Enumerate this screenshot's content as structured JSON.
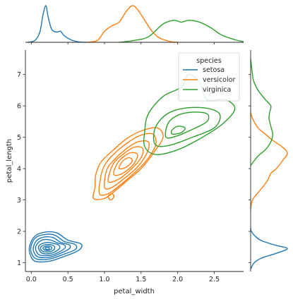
{
  "chart_data": {
    "type": "kde-joint",
    "xlabel": "petal_width",
    "ylabel": "petal_length",
    "xlim": [
      -0.08,
      2.9
    ],
    "ylim": [
      0.72,
      7.78
    ],
    "x_ticks": [
      0.0,
      0.5,
      1.0,
      1.5,
      2.0,
      2.5
    ],
    "x_tick_labels": [
      "0.0",
      "0.5",
      "1.0",
      "1.5",
      "2.0",
      "2.5"
    ],
    "y_ticks": [
      1,
      2,
      3,
      4,
      5,
      6,
      7
    ],
    "y_tick_labels": [
      "1",
      "2",
      "3",
      "4",
      "5",
      "6",
      "7"
    ],
    "grid": false,
    "legend": {
      "title": "species",
      "placement": "top-right",
      "entries": [
        "setosa",
        "versicolor",
        "virginica"
      ]
    },
    "series": [
      {
        "name": "setosa",
        "color": "#1f77b4",
        "center": [
          0.24,
          1.46
        ],
        "x_density": [
          [
            -0.05,
            0.0
          ],
          [
            0.05,
            0.05
          ],
          [
            0.12,
            0.3
          ],
          [
            0.16,
            0.75
          ],
          [
            0.2,
            1.0
          ],
          [
            0.23,
            0.7
          ],
          [
            0.28,
            0.35
          ],
          [
            0.35,
            0.28
          ],
          [
            0.4,
            0.3
          ],
          [
            0.45,
            0.18
          ],
          [
            0.55,
            0.06
          ],
          [
            0.65,
            0.01
          ],
          [
            0.75,
            0.0
          ]
        ],
        "y_density": [
          [
            0.8,
            0.0
          ],
          [
            1.0,
            0.1
          ],
          [
            1.15,
            0.3
          ],
          [
            1.3,
            0.7
          ],
          [
            1.45,
            1.0
          ],
          [
            1.55,
            0.7
          ],
          [
            1.7,
            0.3
          ],
          [
            1.85,
            0.12
          ],
          [
            2.0,
            0.02
          ],
          [
            2.1,
            0.0
          ]
        ],
        "contours": [
          [
            [
              0.05,
              1.05
            ],
            [
              0.25,
              1.05
            ],
            [
              0.45,
              1.2
            ],
            [
              0.65,
              1.4
            ],
            [
              0.68,
              1.6
            ],
            [
              0.5,
              1.72
            ],
            [
              0.35,
              1.95
            ],
            [
              0.2,
              1.98
            ],
            [
              0.05,
              1.85
            ],
            [
              -0.02,
              1.55
            ],
            [
              -0.02,
              1.3
            ]
          ],
          [
            [
              0.07,
              1.12
            ],
            [
              0.25,
              1.12
            ],
            [
              0.42,
              1.25
            ],
            [
              0.6,
              1.42
            ],
            [
              0.6,
              1.58
            ],
            [
              0.45,
              1.68
            ],
            [
              0.32,
              1.88
            ],
            [
              0.18,
              1.9
            ],
            [
              0.06,
              1.8
            ],
            [
              0.0,
              1.55
            ],
            [
              0.0,
              1.32
            ]
          ],
          [
            [
              0.1,
              1.18
            ],
            [
              0.26,
              1.18
            ],
            [
              0.4,
              1.3
            ],
            [
              0.52,
              1.45
            ],
            [
              0.52,
              1.57
            ],
            [
              0.4,
              1.65
            ],
            [
              0.3,
              1.8
            ],
            [
              0.18,
              1.82
            ],
            [
              0.08,
              1.72
            ],
            [
              0.03,
              1.5
            ],
            [
              0.04,
              1.32
            ]
          ],
          [
            [
              0.12,
              1.24
            ],
            [
              0.27,
              1.24
            ],
            [
              0.38,
              1.34
            ],
            [
              0.46,
              1.47
            ],
            [
              0.45,
              1.57
            ],
            [
              0.36,
              1.63
            ],
            [
              0.27,
              1.72
            ],
            [
              0.17,
              1.74
            ],
            [
              0.1,
              1.65
            ],
            [
              0.06,
              1.5
            ],
            [
              0.07,
              1.36
            ]
          ],
          [
            [
              0.15,
              1.3
            ],
            [
              0.27,
              1.3
            ],
            [
              0.35,
              1.38
            ],
            [
              0.39,
              1.48
            ],
            [
              0.37,
              1.57
            ],
            [
              0.3,
              1.62
            ],
            [
              0.23,
              1.65
            ],
            [
              0.16,
              1.62
            ],
            [
              0.11,
              1.55
            ],
            [
              0.1,
              1.45
            ]
          ],
          [
            [
              0.17,
              1.35
            ],
            [
              0.26,
              1.35
            ],
            [
              0.31,
              1.42
            ],
            [
              0.32,
              1.5
            ],
            [
              0.29,
              1.56
            ],
            [
              0.23,
              1.58
            ],
            [
              0.17,
              1.56
            ],
            [
              0.13,
              1.5
            ],
            [
              0.13,
              1.42
            ]
          ],
          [
            [
              0.19,
              1.4
            ],
            [
              0.25,
              1.4
            ],
            [
              0.28,
              1.45
            ],
            [
              0.27,
              1.51
            ],
            [
              0.22,
              1.53
            ],
            [
              0.18,
              1.51
            ],
            [
              0.16,
              1.46
            ]
          ],
          [
            [
              0.2,
              1.43
            ],
            [
              0.24,
              1.43
            ],
            [
              0.25,
              1.47
            ],
            [
              0.22,
              1.49
            ],
            [
              0.19,
              1.47
            ]
          ]
        ]
      },
      {
        "name": "versicolor",
        "color": "#ff7f0e",
        "center": [
          1.33,
          4.26
        ],
        "x_density": [
          [
            0.75,
            0.0
          ],
          [
            0.9,
            0.05
          ],
          [
            1.0,
            0.3
          ],
          [
            1.1,
            0.45
          ],
          [
            1.2,
            0.55
          ],
          [
            1.3,
            0.85
          ],
          [
            1.38,
            1.0
          ],
          [
            1.45,
            0.9
          ],
          [
            1.55,
            0.6
          ],
          [
            1.65,
            0.3
          ],
          [
            1.75,
            0.12
          ],
          [
            1.9,
            0.02
          ],
          [
            2.0,
            0.0
          ]
        ],
        "y_density": [
          [
            2.7,
            0.0
          ],
          [
            3.0,
            0.05
          ],
          [
            3.3,
            0.25
          ],
          [
            3.6,
            0.45
          ],
          [
            3.85,
            0.55
          ],
          [
            4.0,
            0.7
          ],
          [
            4.3,
            0.9
          ],
          [
            4.5,
            1.0
          ],
          [
            4.7,
            0.85
          ],
          [
            4.9,
            0.6
          ],
          [
            5.1,
            0.4
          ],
          [
            5.3,
            0.2
          ],
          [
            5.6,
            0.05
          ],
          [
            5.8,
            0.0
          ]
        ],
        "contours": [
          [
            [
              0.85,
              3.05
            ],
            [
              1.0,
              3.05
            ],
            [
              1.15,
              3.3
            ],
            [
              1.3,
              3.6
            ],
            [
              1.5,
              4.0
            ],
            [
              1.67,
              4.5
            ],
            [
              1.8,
              5.0
            ],
            [
              1.72,
              5.3
            ],
            [
              1.5,
              5.2
            ],
            [
              1.3,
              4.95
            ],
            [
              1.1,
              4.55
            ],
            [
              0.95,
              4.2
            ],
            [
              0.88,
              3.8
            ],
            [
              0.87,
              3.4
            ]
          ],
          [
            [
              0.93,
              3.2
            ],
            [
              1.05,
              3.2
            ],
            [
              1.2,
              3.45
            ],
            [
              1.4,
              3.85
            ],
            [
              1.57,
              4.25
            ],
            [
              1.7,
              4.75
            ],
            [
              1.66,
              5.1
            ],
            [
              1.48,
              5.05
            ],
            [
              1.3,
              4.8
            ],
            [
              1.12,
              4.45
            ],
            [
              1.0,
              4.1
            ],
            [
              0.95,
              3.75
            ]
          ],
          [
            [
              1.0,
              3.4
            ],
            [
              1.1,
              3.4
            ],
            [
              1.25,
              3.65
            ],
            [
              1.45,
              4.05
            ],
            [
              1.58,
              4.5
            ],
            [
              1.6,
              4.85
            ],
            [
              1.45,
              4.85
            ],
            [
              1.28,
              4.6
            ],
            [
              1.12,
              4.25
            ],
            [
              1.03,
              3.95
            ]
          ],
          [
            [
              1.05,
              3.6
            ],
            [
              1.18,
              3.65
            ],
            [
              1.35,
              3.95
            ],
            [
              1.5,
              4.35
            ],
            [
              1.52,
              4.65
            ],
            [
              1.4,
              4.68
            ],
            [
              1.25,
              4.45
            ],
            [
              1.12,
              4.15
            ]
          ],
          [
            [
              1.13,
              3.8
            ],
            [
              1.25,
              3.85
            ],
            [
              1.4,
              4.15
            ],
            [
              1.45,
              4.45
            ],
            [
              1.35,
              4.5
            ],
            [
              1.22,
              4.3
            ],
            [
              1.15,
              4.05
            ]
          ],
          [
            [
              1.2,
              4.0
            ],
            [
              1.3,
              4.05
            ],
            [
              1.38,
              4.25
            ],
            [
              1.33,
              4.35
            ],
            [
              1.24,
              4.22
            ]
          ],
          [
            [
              1.08,
              3.0
            ],
            [
              1.13,
              3.1
            ],
            [
              1.1,
              3.2
            ],
            [
              1.05,
              3.12
            ]
          ]
        ]
      },
      {
        "name": "virginica",
        "color": "#2ca02c",
        "center": [
          2.03,
          5.55
        ],
        "x_density": [
          [
            1.2,
            0.0
          ],
          [
            1.4,
            0.05
          ],
          [
            1.6,
            0.15
          ],
          [
            1.8,
            0.5
          ],
          [
            1.95,
            0.6
          ],
          [
            2.05,
            0.55
          ],
          [
            2.15,
            0.6
          ],
          [
            2.3,
            0.55
          ],
          [
            2.45,
            0.4
          ],
          [
            2.6,
            0.2
          ],
          [
            2.8,
            0.06
          ],
          [
            2.9,
            0.02
          ]
        ],
        "y_density": [
          [
            4.1,
            0.0
          ],
          [
            4.4,
            0.2
          ],
          [
            4.6,
            0.4
          ],
          [
            4.85,
            0.55
          ],
          [
            5.1,
            0.6
          ],
          [
            5.35,
            0.55
          ],
          [
            5.6,
            0.5
          ],
          [
            5.8,
            0.52
          ],
          [
            6.0,
            0.55
          ],
          [
            6.2,
            0.4
          ],
          [
            6.5,
            0.2
          ],
          [
            6.8,
            0.08
          ],
          [
            7.0,
            0.05
          ],
          [
            7.3,
            0.02
          ],
          [
            7.5,
            0.0
          ]
        ],
        "contours": [
          [
            [
              1.55,
              4.7
            ],
            [
              1.7,
              4.45
            ],
            [
              2.0,
              4.6
            ],
            [
              2.3,
              4.95
            ],
            [
              2.6,
              5.4
            ],
            [
              2.78,
              5.9
            ],
            [
              2.65,
              6.2
            ],
            [
              2.4,
              6.2
            ],
            [
              2.3,
              6.75
            ],
            [
              2.15,
              7.0
            ],
            [
              2.05,
              6.6
            ],
            [
              1.8,
              6.3
            ],
            [
              1.6,
              5.75
            ],
            [
              1.55,
              5.2
            ]
          ],
          [
            [
              1.7,
              4.75
            ],
            [
              1.9,
              4.75
            ],
            [
              2.2,
              5.0
            ],
            [
              2.5,
              5.3
            ],
            [
              2.58,
              5.7
            ],
            [
              2.45,
              5.9
            ],
            [
              2.2,
              5.95
            ],
            [
              1.95,
              5.85
            ],
            [
              1.78,
              5.6
            ],
            [
              1.68,
              5.2
            ]
          ],
          [
            [
              1.84,
              5.0
            ],
            [
              2.0,
              5.05
            ],
            [
              2.2,
              5.25
            ],
            [
              2.4,
              5.5
            ],
            [
              2.4,
              5.75
            ],
            [
              2.2,
              5.8
            ],
            [
              2.0,
              5.7
            ],
            [
              1.87,
              5.45
            ]
          ],
          [
            [
              1.93,
              5.1
            ],
            [
              2.05,
              5.15
            ],
            [
              2.1,
              5.3
            ],
            [
              2.0,
              5.35
            ],
            [
              1.92,
              5.22
            ]
          ]
        ]
      }
    ]
  }
}
